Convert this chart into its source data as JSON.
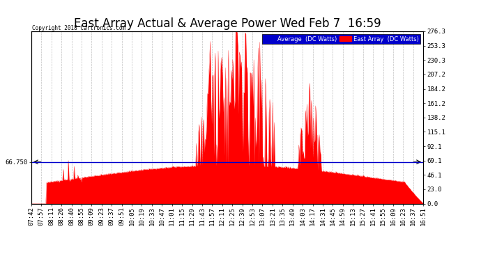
{
  "title": "East Array Actual & Average Power Wed Feb 7  16:59",
  "copyright": "Copyright 2018 Cartronics.com",
  "legend_avg": "Average  (DC Watts)",
  "legend_east": "East Array  (DC Watts)",
  "y_right_ticks": [
    276.3,
    253.3,
    230.3,
    207.2,
    184.2,
    161.2,
    138.2,
    115.1,
    92.1,
    69.1,
    46.1,
    23.0,
    0.0
  ],
  "y_left_annotation": "66.750",
  "hline_y": 66.75,
  "ymax": 276.3,
  "ymin": 0.0,
  "bg_color": "#ffffff",
  "plot_bg_color": "#ffffff",
  "grid_color": "#c0c0c0",
  "line_color_red": "#ff0000",
  "line_color_blue": "#0000cc",
  "title_fontsize": 12,
  "tick_fontsize": 6.5,
  "x_labels": [
    "07:42",
    "07:57",
    "08:11",
    "08:26",
    "08:40",
    "08:55",
    "09:09",
    "09:23",
    "09:37",
    "09:51",
    "10:05",
    "10:19",
    "10:33",
    "10:47",
    "11:01",
    "11:15",
    "11:29",
    "11:43",
    "11:57",
    "12:11",
    "12:25",
    "12:39",
    "12:53",
    "13:07",
    "13:21",
    "13:35",
    "13:49",
    "14:03",
    "14:17",
    "14:31",
    "14:45",
    "14:59",
    "15:13",
    "15:27",
    "15:41",
    "15:55",
    "16:09",
    "16:23",
    "16:37",
    "16:51"
  ],
  "n_points": 540,
  "seed": 7
}
